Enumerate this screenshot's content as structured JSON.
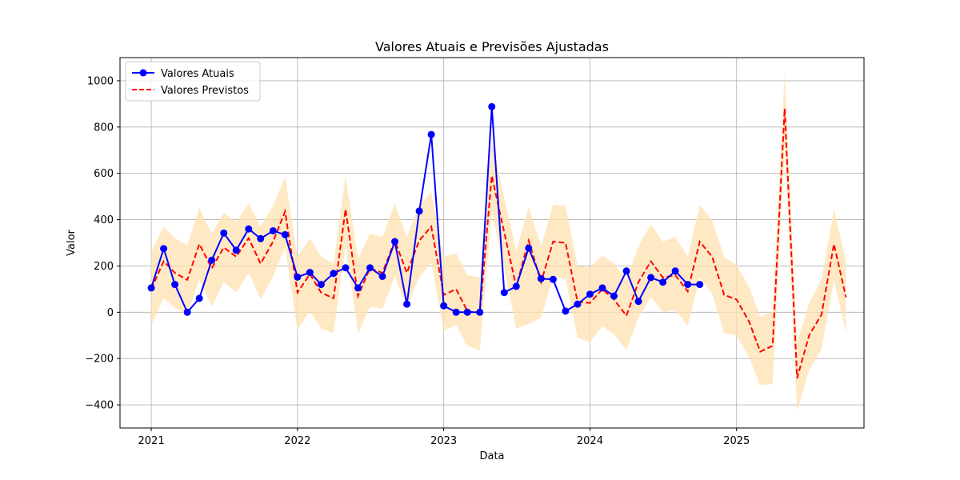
{
  "chart_data": {
    "type": "line",
    "title": "Valores Atuais e Previsões Ajustadas",
    "xlabel": "Data",
    "ylabel": "Valor",
    "xlim": [
      "2020-10-15",
      "2025-11-15"
    ],
    "ylim": [
      -500,
      1100
    ],
    "x_ticks": [
      {
        "label": "2021",
        "date": "2021-01-01"
      },
      {
        "label": "2022",
        "date": "2022-01-01"
      },
      {
        "label": "2023",
        "date": "2023-01-01"
      },
      {
        "label": "2024",
        "date": "2024-01-01"
      },
      {
        "label": "2025",
        "date": "2025-01-01"
      }
    ],
    "y_ticks": [
      -400,
      -200,
      0,
      200,
      400,
      600,
      800,
      1000
    ],
    "grid": true,
    "legend_position": "top-left",
    "colors": {
      "actual": "#0000ff",
      "forecast": "#ff0000",
      "band": "#ffe2b0"
    },
    "series": [
      {
        "name": "Valores Atuais",
        "style": "solid-marker",
        "x": [
          "2021-01",
          "2021-02",
          "2021-03",
          "2021-04",
          "2021-05",
          "2021-06",
          "2021-07",
          "2021-08",
          "2021-09",
          "2021-10",
          "2021-11",
          "2021-12",
          "2022-01",
          "2022-02",
          "2022-03",
          "2022-04",
          "2022-05",
          "2022-06",
          "2022-07",
          "2022-08",
          "2022-09",
          "2022-10",
          "2022-11",
          "2022-12",
          "2023-01",
          "2023-02",
          "2023-03",
          "2023-04",
          "2023-05",
          "2023-06",
          "2023-07",
          "2023-08",
          "2023-09",
          "2023-10",
          "2023-11",
          "2023-12",
          "2024-01",
          "2024-02",
          "2024-03",
          "2024-04",
          "2024-05",
          "2024-06",
          "2024-07",
          "2024-08",
          "2024-09",
          "2024-10"
        ],
        "values": [
          105,
          275,
          120,
          0,
          60,
          225,
          342,
          268,
          360,
          318,
          352,
          335,
          152,
          172,
          120,
          168,
          192,
          105,
          192,
          155,
          305,
          35,
          437,
          768,
          28,
          0,
          0,
          0,
          888,
          85,
          112,
          277,
          145,
          142,
          5,
          35,
          78,
          105,
          70,
          178,
          47,
          150,
          130,
          178,
          120,
          120
        ]
      },
      {
        "name": "Valores Previstos",
        "style": "dashed",
        "x": [
          "2021-01",
          "2021-02",
          "2021-03",
          "2021-04",
          "2021-05",
          "2021-06",
          "2021-07",
          "2021-08",
          "2021-09",
          "2021-10",
          "2021-11",
          "2021-12",
          "2022-01",
          "2022-02",
          "2022-03",
          "2022-04",
          "2022-05",
          "2022-06",
          "2022-07",
          "2022-08",
          "2022-09",
          "2022-10",
          "2022-11",
          "2022-12",
          "2023-01",
          "2023-02",
          "2023-03",
          "2023-04",
          "2023-05",
          "2023-06",
          "2023-07",
          "2023-08",
          "2023-09",
          "2023-10",
          "2023-11",
          "2023-12",
          "2024-01",
          "2024-02",
          "2024-03",
          "2024-04",
          "2024-05",
          "2024-06",
          "2024-07",
          "2024-08",
          "2024-09",
          "2024-10",
          "2024-11",
          "2024-12",
          "2025-01",
          "2025-02",
          "2025-03",
          "2025-04",
          "2025-05",
          "2025-06",
          "2025-07",
          "2025-08",
          "2025-09",
          "2025-10"
        ],
        "values": [
          100,
          220,
          170,
          140,
          295,
          190,
          280,
          240,
          320,
          210,
          305,
          435,
          85,
          165,
          85,
          60,
          445,
          70,
          190,
          170,
          310,
          170,
          310,
          370,
          75,
          100,
          5,
          -5,
          590,
          345,
          110,
          310,
          130,
          305,
          300,
          45,
          40,
          100,
          55,
          -15,
          130,
          220,
          150,
          160,
          90,
          305,
          240,
          75,
          55,
          -40,
          -170,
          -145,
          880,
          -285,
          -100,
          -10,
          295,
          65
        ]
      }
    ],
    "confidence_band": {
      "x": [
        "2021-01",
        "2021-02",
        "2021-03",
        "2021-04",
        "2021-05",
        "2021-06",
        "2021-07",
        "2021-08",
        "2021-09",
        "2021-10",
        "2021-11",
        "2021-12",
        "2022-01",
        "2022-02",
        "2022-03",
        "2022-04",
        "2022-05",
        "2022-06",
        "2022-07",
        "2022-08",
        "2022-09",
        "2022-10",
        "2022-11",
        "2022-12",
        "2023-01",
        "2023-02",
        "2023-03",
        "2023-04",
        "2023-05",
        "2023-06",
        "2023-07",
        "2023-08",
        "2023-09",
        "2023-10",
        "2023-11",
        "2023-12",
        "2024-01",
        "2024-02",
        "2024-03",
        "2024-04",
        "2024-05",
        "2024-06",
        "2024-07",
        "2024-08",
        "2024-09",
        "2024-10",
        "2024-11",
        "2024-12",
        "2025-01",
        "2025-02",
        "2025-03",
        "2025-04",
        "2025-05",
        "2025-06",
        "2025-07",
        "2025-08",
        "2025-09",
        "2025-10"
      ],
      "upper": [
        260,
        370,
        320,
        290,
        450,
        340,
        430,
        390,
        470,
        370,
        460,
        585,
        240,
        320,
        240,
        210,
        590,
        230,
        340,
        325,
        470,
        325,
        465,
        520,
        240,
        255,
        160,
        150,
        745,
        495,
        265,
        455,
        285,
        465,
        460,
        200,
        195,
        245,
        210,
        140,
        285,
        380,
        305,
        325,
        240,
        465,
        395,
        240,
        205,
        110,
        -20,
        5,
        1035,
        -130,
        40,
        140,
        445,
        220
      ],
      "lower": [
        -55,
        60,
        20,
        -10,
        140,
        25,
        130,
        85,
        170,
        55,
        155,
        280,
        -75,
        5,
        -70,
        -90,
        290,
        -90,
        25,
        15,
        155,
        20,
        150,
        215,
        -80,
        -55,
        -145,
        -165,
        430,
        190,
        -70,
        -50,
        -25,
        155,
        145,
        -110,
        -130,
        -60,
        -95,
        -165,
        -25,
        65,
        0,
        10,
        -60,
        150,
        80,
        -90,
        -100,
        -195,
        -315,
        -310,
        725,
        -430,
        -250,
        -160,
        140,
        -90
      ]
    }
  }
}
